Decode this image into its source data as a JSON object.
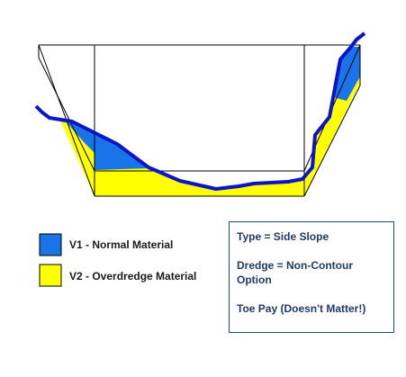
{
  "legend": [
    {
      "label": "V1 - Normal Material"
    },
    {
      "label": "V2 - Overdredge Material"
    }
  ],
  "info": {
    "lines": [
      "Type = Side Slope",
      "Dredge = Non-Contour Option",
      "Toe Pay (Doesn't Matter!)"
    ]
  }
}
